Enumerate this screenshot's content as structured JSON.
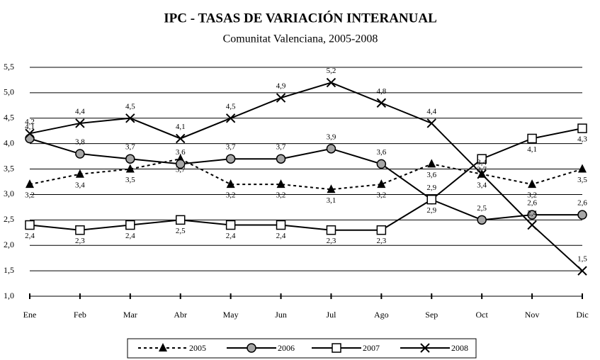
{
  "chart_data": {
    "type": "line",
    "title": "IPC - TASAS DE VARIACIÓN INTERANUAL",
    "subtitle": "Comunitat Valenciana, 2005-2008",
    "categories": [
      "Ene",
      "Feb",
      "Mar",
      "Abr",
      "May",
      "Jun",
      "Jul",
      "Ago",
      "Sep",
      "Oct",
      "Nov",
      "Dic"
    ],
    "series": [
      {
        "name": "2005",
        "color": "#000000",
        "values": [
          3.2,
          3.4,
          3.5,
          3.7,
          3.2,
          3.2,
          3.1,
          3.2,
          3.6,
          3.4,
          3.2,
          3.5
        ],
        "value_labels": [
          "3,2",
          "3,4",
          "3,5",
          "3,7",
          "3,2",
          "3,2",
          "3,1",
          "3,2",
          "3,6",
          "3,4",
          "3,2",
          "3,5"
        ]
      },
      {
        "name": "2006",
        "color": "#000000",
        "values": [
          4.1,
          3.8,
          3.7,
          3.6,
          3.7,
          3.7,
          3.9,
          3.6,
          2.9,
          2.5,
          2.6,
          2.6
        ],
        "value_labels": [
          "4,1",
          "3,8",
          "3,7",
          "3,6",
          "3,7",
          "3,7",
          "3,9",
          "3,6",
          "2,9",
          "2,5",
          "2,6",
          "2,6"
        ]
      },
      {
        "name": "2007",
        "color": "#000000",
        "values": [
          2.4,
          2.3,
          2.4,
          2.5,
          2.4,
          2.4,
          2.3,
          2.3,
          2.9,
          3.7,
          4.1,
          4.3
        ],
        "value_labels": [
          "2,4",
          "2,3",
          "2,4",
          "2,5",
          "2,4",
          "2,4",
          "2,3",
          "2,3",
          "2,9",
          "3,7",
          "4,1",
          "4,3"
        ]
      },
      {
        "name": "2008",
        "color": "#000000",
        "values": [
          4.2,
          4.4,
          4.5,
          4.1,
          4.5,
          4.9,
          5.2,
          4.8,
          4.4,
          3.4,
          2.4,
          1.5
        ],
        "value_labels": [
          "4,2",
          "4,4",
          "4,5",
          "4,1",
          "4,5",
          "4,9",
          "5,2",
          "4,8",
          "4,4",
          "3,4",
          "2,4",
          "1,5"
        ]
      }
    ],
    "ylim": [
      1.0,
      5.5
    ],
    "yticks": [
      {
        "value": 1.0,
        "label": "1,0"
      },
      {
        "value": 1.5,
        "label": "1,5"
      },
      {
        "value": 2.0,
        "label": "2,0"
      },
      {
        "value": 2.5,
        "label": "2,5"
      },
      {
        "value": 3.0,
        "label": "3,0"
      },
      {
        "value": 3.5,
        "label": "3,5"
      },
      {
        "value": 4.0,
        "label": "4,0"
      },
      {
        "value": 4.5,
        "label": "4,5"
      },
      {
        "value": 5.0,
        "label": "5,0"
      },
      {
        "value": 5.5,
        "label": "5,5"
      }
    ],
    "grid": true,
    "legend": "bottom"
  }
}
